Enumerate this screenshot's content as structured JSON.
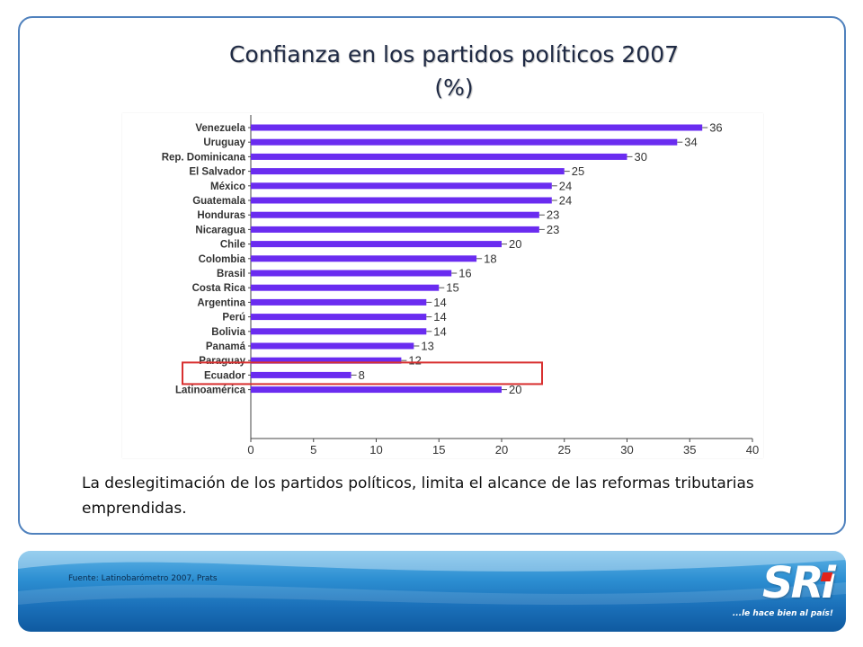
{
  "slide": {
    "title_line1": "Confianza en los partidos políticos 2007",
    "title_line2": "(%)",
    "note": "La deslegitimación de los partidos políticos, limita el alcance de las reformas tributarias emprendidas.",
    "source": "Fuente: Latinobarómetro 2007, Prats"
  },
  "logo": {
    "text": "SRi",
    "slogan": "...le hace bien al país!"
  },
  "colors": {
    "bar": "#6a2cf0",
    "highlight": "#d83030",
    "frame": "#4f81bd",
    "footer": "#1a6fb8",
    "logo_accent": "#e2231a"
  },
  "chart_data": {
    "type": "bar",
    "orientation": "horizontal",
    "categories": [
      "Venezuela",
      "Uruguay",
      "Rep. Dominicana",
      "El Salvador",
      "México",
      "Guatemala",
      "Honduras",
      "Nicaragua",
      "Chile",
      "Colombia",
      "Brasil",
      "Costa Rica",
      "Argentina",
      "Perú",
      "Bolivia",
      "Panamá",
      "Paraguay",
      "Ecuador",
      "Latinoamérica"
    ],
    "values": [
      36,
      34,
      30,
      25,
      24,
      24,
      23,
      23,
      20,
      18,
      16,
      15,
      14,
      14,
      14,
      13,
      12,
      8,
      20
    ],
    "xticks": [
      0,
      5,
      10,
      15,
      20,
      25,
      30,
      35,
      40
    ],
    "xlim": [
      0,
      40
    ],
    "highlighted_category": "Ecuador",
    "title": "Confianza en los partidos políticos 2007 (%)",
    "xlabel": "",
    "ylabel": "",
    "grid": false
  }
}
